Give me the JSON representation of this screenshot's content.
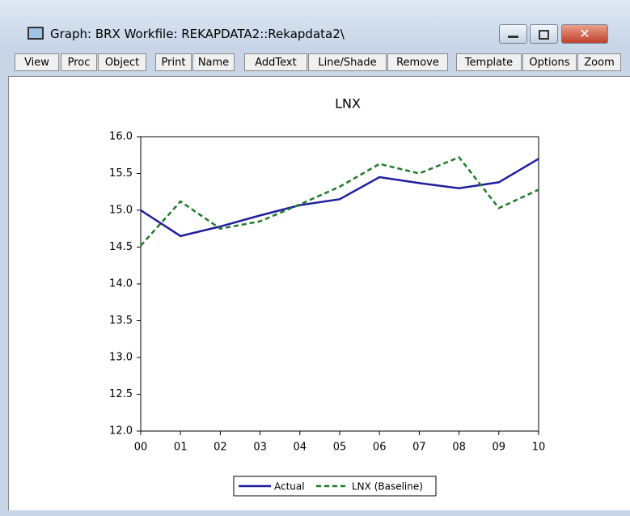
{
  "window": {
    "title": "Graph: BRX   Workfile: REKAPDATA2::Rekapdata2\\"
  },
  "toolbar": [
    "View",
    "Proc",
    "Object",
    "Print",
    "Name",
    "AddText",
    "Line/Shade",
    "Remove",
    "Template",
    "Options",
    "Zoom"
  ],
  "chart_data": {
    "type": "line",
    "title": "LNX",
    "categories": [
      "00",
      "01",
      "02",
      "03",
      "04",
      "05",
      "06",
      "07",
      "08",
      "09",
      "10"
    ],
    "series": [
      {
        "name": "Actual",
        "color": "#1f1f9c",
        "dash": "none",
        "values": [
          15.0,
          14.65,
          14.78,
          14.93,
          15.07,
          15.15,
          15.45,
          15.37,
          15.3,
          15.38,
          15.7
        ]
      },
      {
        "name": "LNX (Baseline)",
        "color": "#1e7a2a",
        "dash": "6 4",
        "values": [
          14.52,
          15.12,
          14.75,
          14.85,
          15.08,
          15.32,
          15.63,
          15.5,
          15.72,
          15.03,
          15.28
        ]
      }
    ],
    "ylim": [
      12,
      16
    ],
    "yticks": [
      {
        "value": 12,
        "label": "12.0"
      },
      12.5,
      {
        "value": 13,
        "label": "13.0"
      },
      13.5,
      {
        "value": 14,
        "label": "14.0"
      },
      14.5,
      {
        "value": 15,
        "label": "15.0"
      },
      15.5,
      {
        "value": 16,
        "label": "16.0"
      }
    ],
    "legend": "bottom"
  }
}
